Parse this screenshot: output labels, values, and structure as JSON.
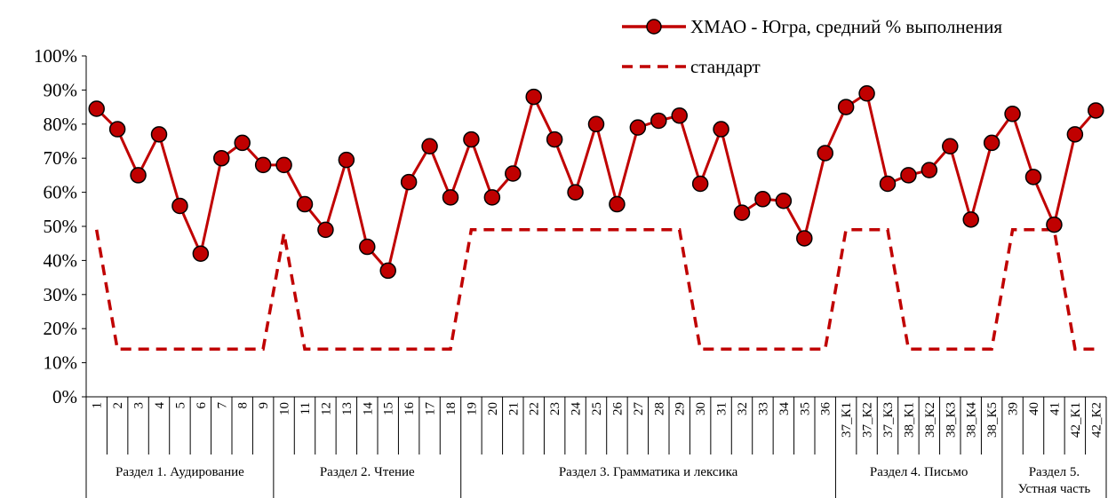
{
  "chart_data": {
    "type": "line",
    "title": "",
    "xlabel": "",
    "ylabel": "",
    "ylim": [
      0,
      100
    ],
    "y_ticks": [
      "0%",
      "10%",
      "20%",
      "30%",
      "40%",
      "50%",
      "60%",
      "70%",
      "80%",
      "90%",
      "100%"
    ],
    "grid": false,
    "legend_position": "top-right",
    "colors": {
      "series": "#c00000",
      "marker_fill": "#c00000",
      "marker_stroke": "#000000",
      "axis": "#000000"
    },
    "categories": [
      "1",
      "2",
      "3",
      "4",
      "5",
      "6",
      "7",
      "8",
      "9",
      "10",
      "11",
      "12",
      "13",
      "14",
      "15",
      "16",
      "17",
      "18",
      "19",
      "20",
      "21",
      "22",
      "23",
      "24",
      "25",
      "26",
      "27",
      "28",
      "29",
      "30",
      "31",
      "32",
      "33",
      "34",
      "35",
      "36",
      "37_К1",
      "37_К2",
      "37_К3",
      "38_К1",
      "38_К2",
      "38_К3",
      "38_К4",
      "38_К5",
      "39",
      "40",
      "41",
      "42_К1",
      "42_К2"
    ],
    "sections": [
      {
        "label": "Раздел 1. Аудирование",
        "start": 0,
        "end": 8
      },
      {
        "label": "Раздел 2. Чтение",
        "start": 9,
        "end": 17
      },
      {
        "label": "Раздел 3. Грамматика и лексика",
        "start": 18,
        "end": 35
      },
      {
        "label": "Раздел 4. Письмо",
        "start": 36,
        "end": 43
      },
      {
        "label": "Раздел 5. Устная часть",
        "start": 44,
        "end": 48
      }
    ],
    "series": [
      {
        "name": "ХМАО - Югра, средний % выполнения",
        "style": "line-marker",
        "values": [
          84.5,
          78.5,
          65,
          77,
          56,
          42,
          70,
          74.5,
          68,
          68,
          56.5,
          49,
          69.5,
          44,
          37,
          63,
          73.5,
          58.5,
          75.5,
          58.5,
          65.5,
          88,
          75.5,
          60,
          80,
          56.5,
          79,
          81,
          82.5,
          62.5,
          78.5,
          54,
          58,
          57.5,
          46.5,
          71.5,
          85,
          89,
          62.5,
          65,
          66.5,
          73.5,
          52,
          74.5,
          83,
          64.5,
          50.5,
          77,
          84
        ]
      },
      {
        "name": "стандарт",
        "style": "dashed",
        "values": [
          49,
          14,
          14,
          14,
          14,
          14,
          14,
          14,
          14,
          48,
          14,
          14,
          14,
          14,
          14,
          14,
          14,
          14,
          49,
          49,
          49,
          49,
          49,
          49,
          49,
          49,
          49,
          49,
          49,
          14,
          14,
          14,
          14,
          14,
          14,
          14,
          49,
          49,
          49,
          14,
          14,
          14,
          14,
          14,
          49,
          49,
          49,
          14,
          14
        ]
      }
    ]
  }
}
